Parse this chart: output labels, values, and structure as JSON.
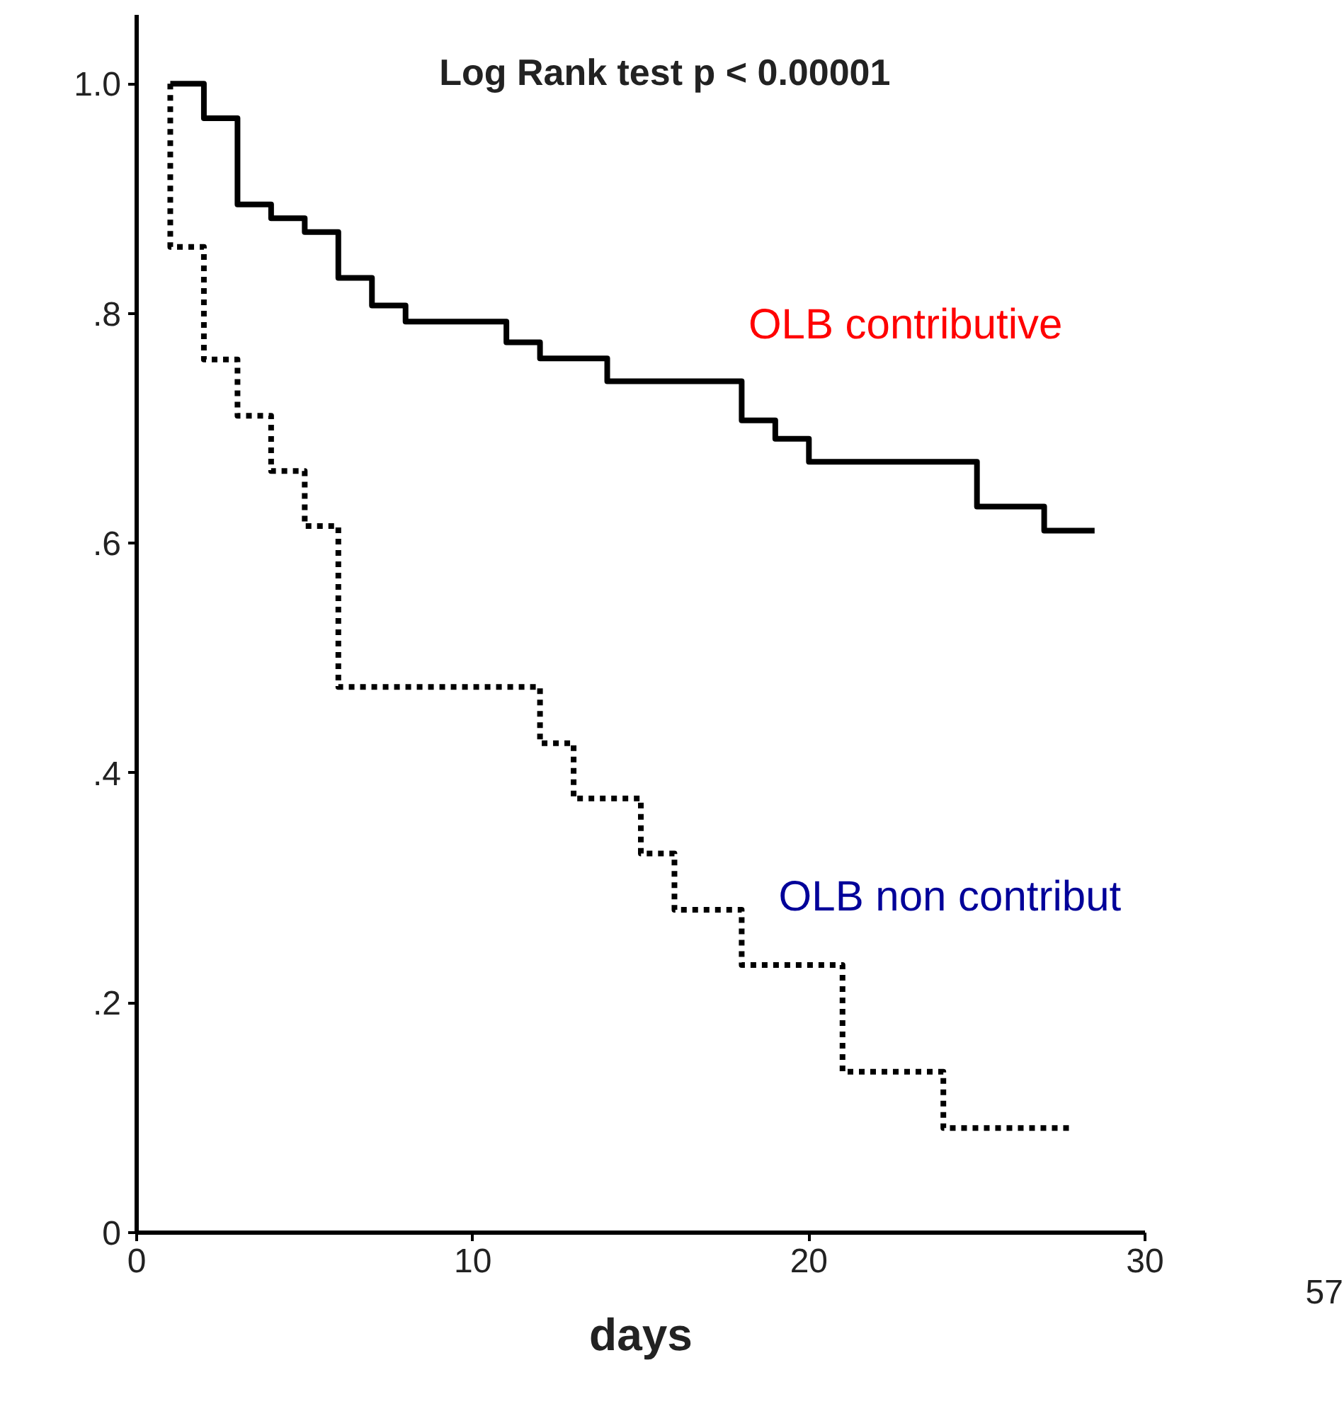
{
  "chart_data": {
    "type": "step",
    "xlabel": "days",
    "annotations": [
      "Log Rank test p < 0.00001",
      "57"
    ],
    "xlim": [
      0,
      30
    ],
    "xticks": [
      0,
      10,
      20,
      30
    ],
    "ylim": [
      0,
      1.06
    ],
    "yticks": [
      {
        "value": 0,
        "label": "0"
      },
      {
        "value": 0.2,
        "label": ".2"
      },
      {
        "value": 0.4,
        "label": ".4"
      },
      {
        "value": 0.6,
        "label": ".6"
      },
      {
        "value": 0.8,
        "label": ".8"
      },
      {
        "value": 1.0,
        "label": "1.0"
      }
    ],
    "grid": false,
    "legend": false,
    "marker": "none",
    "series": [
      {
        "name": "OLB contributive",
        "color": "#000000",
        "line_style": "solid",
        "x": [
          1,
          2,
          3,
          4,
          5,
          6,
          7,
          8,
          11,
          12,
          14,
          18,
          19,
          20,
          25,
          27,
          28.5
        ],
        "values": [
          1.0,
          0.97,
          0.895,
          0.883,
          0.871,
          0.831,
          0.807,
          0.793,
          0.775,
          0.761,
          0.741,
          0.707,
          0.691,
          0.671,
          0.632,
          0.611,
          0.611
        ]
      },
      {
        "name": "OLB non contribut",
        "color": "#000000",
        "line_style": "dotted",
        "x": [
          1,
          1,
          2,
          3,
          4,
          5,
          6,
          12,
          13,
          15,
          16,
          18,
          21,
          24,
          27.8
        ],
        "values": [
          1.0,
          0.858,
          0.76,
          0.711,
          0.663,
          0.615,
          0.475,
          0.426,
          0.378,
          0.33,
          0.281,
          0.233,
          0.14,
          0.091,
          0.091
        ]
      }
    ]
  }
}
